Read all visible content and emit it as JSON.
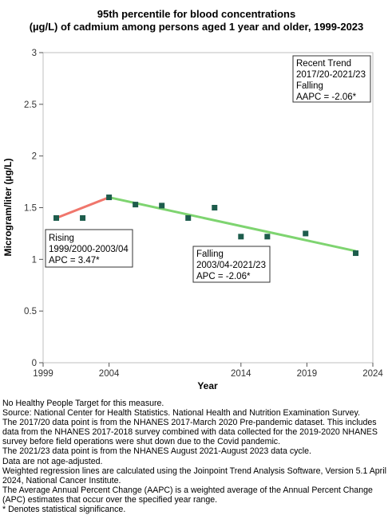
{
  "chart_data": {
    "type": "line",
    "title": [
      "95th percentile for blood concentrations",
      "(µg/L) of cadmium among persons aged 1 year and older, 1999-2023"
    ],
    "xlabel": "Year",
    "ylabel": "Microgram/liter (µg/L)",
    "xlim": [
      1999,
      2024
    ],
    "ylim": [
      0,
      3
    ],
    "x_ticks": [
      "1999",
      "2004",
      "2014",
      "2019",
      "2024"
    ],
    "y_ticks": [
      "0",
      "0.5",
      "1",
      "1.5",
      "2",
      "2.5",
      "3"
    ],
    "grid": false,
    "series": [
      {
        "type": "scatter",
        "x": [
          2000,
          2002,
          2004,
          2006,
          2008,
          2010,
          2012,
          2014,
          2016,
          2018.9,
          2022.7
        ],
        "y": [
          1.4,
          1.4,
          1.6,
          1.53,
          1.52,
          1.4,
          1.5,
          1.22,
          1.22,
          1.25,
          1.06
        ],
        "color": "#1d5c4c"
      }
    ],
    "trend_lines": [
      {
        "x": [
          2000,
          2004
        ],
        "y": [
          1.4,
          1.6
        ],
        "color": "#f0766c"
      },
      {
        "x": [
          2004,
          2022.7
        ],
        "y": [
          1.6,
          1.08
        ],
        "color": "#7ed470"
      }
    ],
    "annotations": [
      {
        "name": "rising",
        "lines": [
          "Rising",
          "1999/2000-2003/04",
          "APC =  3.47*"
        ]
      },
      {
        "name": "falling",
        "lines": [
          "Falling",
          "2003/04-2021/23",
          "APC = -2.06*"
        ]
      },
      {
        "name": "recent-trend",
        "lines": [
          "Recent Trend",
          "2017/20-2021/23",
          "Falling",
          "AAPC = -2.06*"
        ]
      }
    ]
  },
  "footnotes": [
    "No Healthy People Target for this measure.",
    "Source: National Center for Health Statistics. National Health and Nutrition Examination Survey.",
    "The 2017/20 data point is from the NHANES 2017-March 2020 Pre-pandemic dataset. This includes data from the NHANES 2017-2018 survey combined with data collected for the 2019-2020 NHANES survey before field operations were shut down due to the Covid pandemic.",
    "The 2021/23 data point is from the NHANES August 2021-August 2023 data cycle.",
    "Data are not age-adjusted.",
    "Weighted regression lines are calculated using the Joinpoint Trend Analysis Software, Version 5.1 April 2024, National Cancer Institute.",
    "The Average Annual Percent Change (AAPC) is a weighted average of the Annual Percent Change (APC) estimates that occur over the specified year range.",
    "* Denotes statistical significance."
  ]
}
